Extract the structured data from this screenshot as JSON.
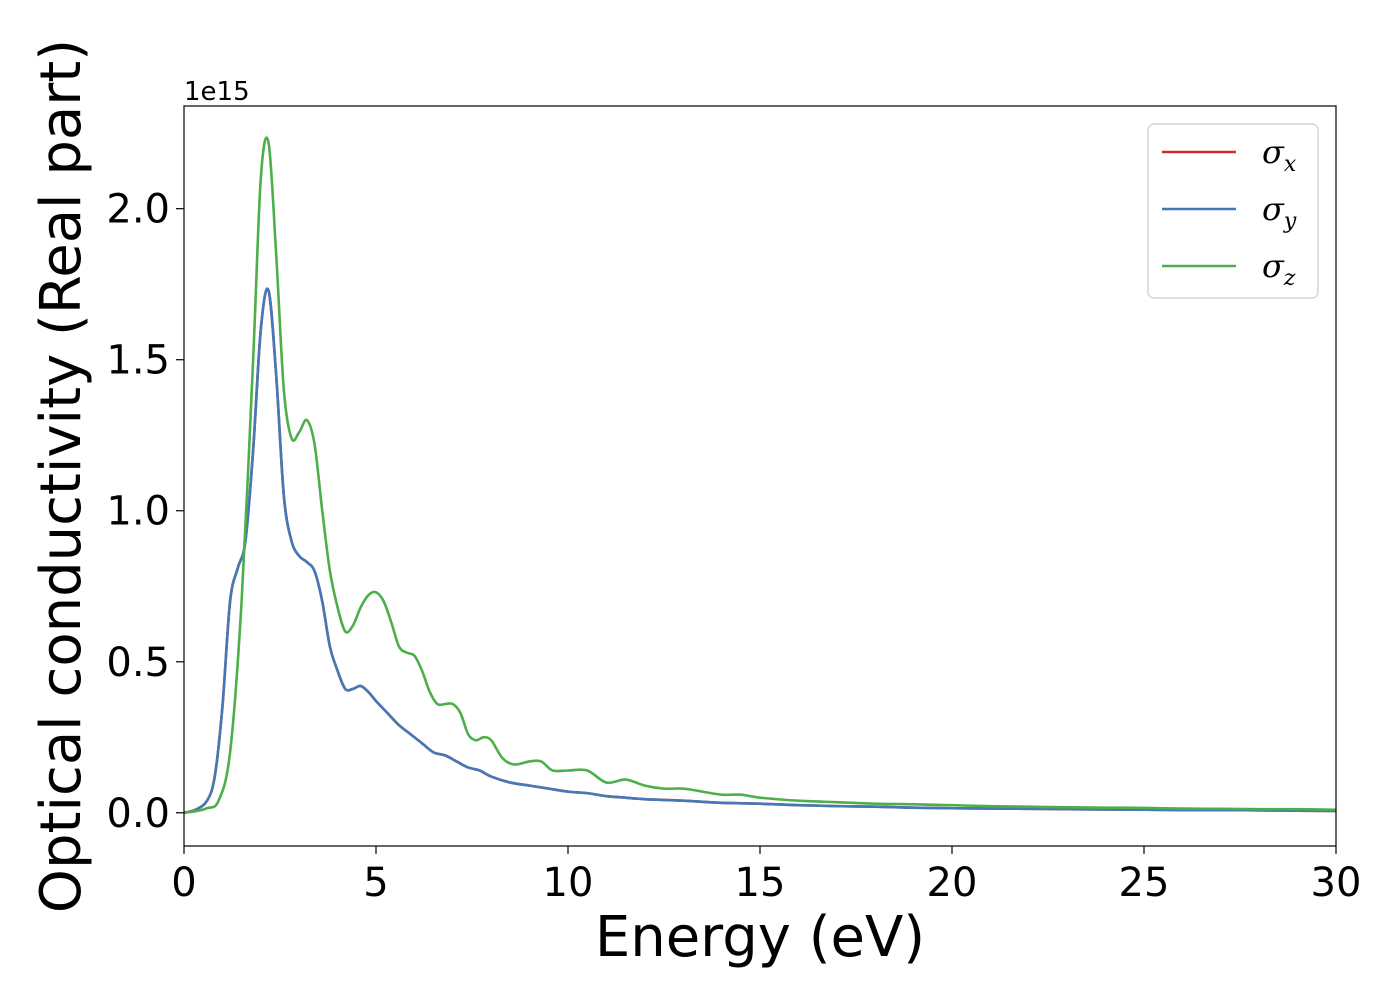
{
  "chart_data": {
    "type": "line",
    "xlabel": "Energy (eV)",
    "ylabel": "Optical conductivity (Real part)",
    "y_offset_label": "1e15",
    "xlim": [
      0,
      30
    ],
    "ylim": [
      -0.11,
      2.34
    ],
    "xticks": [
      0,
      5,
      10,
      15,
      20,
      25,
      30
    ],
    "xtick_labels": [
      "0",
      "5",
      "10",
      "15",
      "20",
      "25",
      "30"
    ],
    "yticks": [
      0.0,
      0.5,
      1.0,
      1.5,
      2.0
    ],
    "ytick_labels": [
      "0.0",
      "0.5",
      "1.0",
      "1.5",
      "2.0"
    ],
    "grid": false,
    "legend_position": "top-right",
    "series": [
      {
        "name": "σx",
        "legend_symbol": "σ",
        "legend_subscript": "x",
        "color": "#d62728",
        "x": [
          0,
          0.3,
          0.6,
          0.8,
          1.0,
          1.2,
          1.4,
          1.6,
          1.8,
          2.0,
          2.2,
          2.4,
          2.6,
          2.8,
          3.0,
          3.2,
          3.4,
          3.6,
          3.8,
          4.0,
          4.2,
          4.4,
          4.6,
          4.8,
          5.0,
          5.3,
          5.6,
          5.9,
          6.2,
          6.5,
          6.8,
          7.1,
          7.4,
          7.7,
          8.0,
          8.5,
          9.0,
          9.5,
          10.0,
          10.5,
          11.0,
          11.5,
          12.0,
          13.0,
          14.0,
          15.0,
          16.0,
          17.0,
          18.0,
          19.0,
          20.0,
          21.0,
          22.0,
          23.0,
          24.0,
          25.0,
          26.0,
          27.0,
          28.0,
          29.0,
          30.0
        ],
        "y": [
          0.0,
          0.01,
          0.04,
          0.12,
          0.35,
          0.7,
          0.81,
          0.9,
          1.2,
          1.6,
          1.73,
          1.45,
          1.05,
          0.9,
          0.85,
          0.83,
          0.8,
          0.7,
          0.55,
          0.47,
          0.41,
          0.41,
          0.42,
          0.4,
          0.37,
          0.33,
          0.29,
          0.26,
          0.23,
          0.2,
          0.19,
          0.17,
          0.15,
          0.14,
          0.12,
          0.1,
          0.09,
          0.08,
          0.07,
          0.065,
          0.055,
          0.05,
          0.045,
          0.04,
          0.033,
          0.03,
          0.025,
          0.022,
          0.02,
          0.017,
          0.015,
          0.014,
          0.013,
          0.012,
          0.011,
          0.01,
          0.009,
          0.009,
          0.008,
          0.007,
          0.006
        ]
      },
      {
        "name": "σy",
        "legend_symbol": "σ",
        "legend_subscript": "y",
        "color": "#4479b8",
        "x": [
          0,
          0.3,
          0.6,
          0.8,
          1.0,
          1.2,
          1.4,
          1.6,
          1.8,
          2.0,
          2.2,
          2.4,
          2.6,
          2.8,
          3.0,
          3.2,
          3.4,
          3.6,
          3.8,
          4.0,
          4.2,
          4.4,
          4.6,
          4.8,
          5.0,
          5.3,
          5.6,
          5.9,
          6.2,
          6.5,
          6.8,
          7.1,
          7.4,
          7.7,
          8.0,
          8.5,
          9.0,
          9.5,
          10.0,
          10.5,
          11.0,
          11.5,
          12.0,
          13.0,
          14.0,
          15.0,
          16.0,
          17.0,
          18.0,
          19.0,
          20.0,
          21.0,
          22.0,
          23.0,
          24.0,
          25.0,
          26.0,
          27.0,
          28.0,
          29.0,
          30.0
        ],
        "y": [
          0.0,
          0.01,
          0.04,
          0.12,
          0.35,
          0.7,
          0.81,
          0.9,
          1.2,
          1.6,
          1.73,
          1.45,
          1.05,
          0.9,
          0.85,
          0.83,
          0.8,
          0.7,
          0.55,
          0.47,
          0.41,
          0.41,
          0.42,
          0.4,
          0.37,
          0.33,
          0.29,
          0.26,
          0.23,
          0.2,
          0.19,
          0.17,
          0.15,
          0.14,
          0.12,
          0.1,
          0.09,
          0.08,
          0.07,
          0.065,
          0.055,
          0.05,
          0.045,
          0.04,
          0.033,
          0.03,
          0.025,
          0.022,
          0.02,
          0.017,
          0.015,
          0.014,
          0.013,
          0.012,
          0.011,
          0.01,
          0.009,
          0.009,
          0.008,
          0.007,
          0.006
        ]
      },
      {
        "name": "σz",
        "legend_symbol": "σ",
        "legend_subscript": "z",
        "color": "#4daf4a",
        "x": [
          0,
          0.3,
          0.6,
          0.9,
          1.2,
          1.5,
          1.8,
          2.0,
          2.2,
          2.4,
          2.6,
          2.8,
          3.0,
          3.2,
          3.4,
          3.6,
          3.8,
          4.0,
          4.2,
          4.4,
          4.6,
          4.8,
          5.0,
          5.2,
          5.4,
          5.6,
          5.8,
          6.0,
          6.2,
          6.4,
          6.6,
          6.8,
          7.0,
          7.2,
          7.4,
          7.6,
          7.8,
          8.0,
          8.3,
          8.6,
          9.0,
          9.3,
          9.6,
          10.0,
          10.5,
          11.0,
          11.5,
          12.0,
          12.5,
          13.0,
          13.5,
          14.0,
          14.5,
          15.0,
          16.0,
          17.0,
          18.0,
          19.0,
          20.0,
          21.0,
          22.0,
          23.0,
          24.0,
          25.0,
          26.0,
          27.0,
          28.0,
          29.0,
          30.0
        ],
        "y": [
          0.0,
          0.005,
          0.015,
          0.04,
          0.2,
          0.7,
          1.5,
          2.1,
          2.22,
          1.85,
          1.4,
          1.24,
          1.26,
          1.3,
          1.22,
          1.0,
          0.8,
          0.68,
          0.6,
          0.62,
          0.68,
          0.72,
          0.73,
          0.7,
          0.63,
          0.55,
          0.53,
          0.52,
          0.47,
          0.4,
          0.36,
          0.36,
          0.36,
          0.33,
          0.26,
          0.24,
          0.25,
          0.24,
          0.18,
          0.16,
          0.17,
          0.17,
          0.14,
          0.14,
          0.14,
          0.1,
          0.11,
          0.09,
          0.08,
          0.08,
          0.07,
          0.06,
          0.06,
          0.05,
          0.04,
          0.035,
          0.03,
          0.028,
          0.025,
          0.022,
          0.02,
          0.018,
          0.017,
          0.016,
          0.014,
          0.013,
          0.012,
          0.012,
          0.01
        ]
      }
    ]
  }
}
